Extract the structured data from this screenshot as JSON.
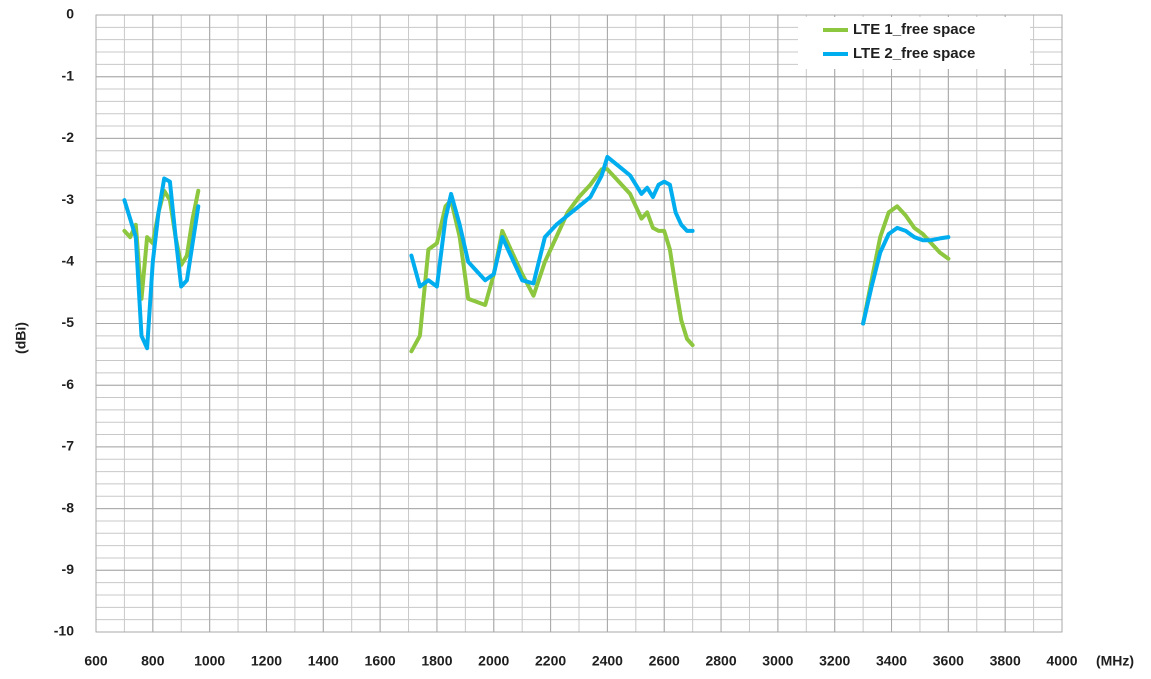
{
  "chart_data": {
    "type": "line",
    "xlabel": "(MHz)",
    "ylabel": "(dBi)",
    "xlim": [
      600,
      4000
    ],
    "ylim": [
      -10,
      0
    ],
    "xticks": [
      600,
      800,
      1000,
      1200,
      1400,
      1600,
      1800,
      2000,
      2200,
      2400,
      2600,
      2800,
      3000,
      3200,
      3400,
      3600,
      3800,
      4000
    ],
    "yticks": [
      0,
      -1,
      -2,
      -3,
      -4,
      -5,
      -6,
      -7,
      -8,
      -9,
      -10
    ],
    "grid": true,
    "minor_grid": {
      "xstep": 100,
      "ystep": 0.2
    },
    "legend": "upper right",
    "x": [
      700,
      720,
      740,
      760,
      780,
      800,
      820,
      840,
      860,
      880,
      900,
      920,
      940,
      960,
      1300,
      1710,
      1740,
      1770,
      1800,
      1830,
      1850,
      1880,
      1910,
      1940,
      1970,
      2000,
      2030,
      2060,
      2100,
      2140,
      2180,
      2220,
      2260,
      2300,
      2340,
      2380,
      2400,
      2440,
      2480,
      2520,
      2540,
      2560,
      2580,
      2600,
      2620,
      2640,
      2660,
      2680,
      2700,
      3000,
      3300,
      3330,
      3360,
      3390,
      3420,
      3450,
      3480,
      3510,
      3540,
      3570,
      3600
    ],
    "series": [
      {
        "name": "LTE 1_free space",
        "color": "#8dc63f",
        "values": [
          -3.5,
          -3.6,
          -3.4,
          -4.6,
          -3.6,
          -3.7,
          -3.2,
          -2.85,
          -3.0,
          -3.6,
          -4.05,
          -3.9,
          -3.3,
          -2.85,
          null,
          -5.45,
          -5.2,
          -3.8,
          -3.7,
          -3.1,
          -3.0,
          -3.6,
          -4.6,
          -4.65,
          -4.7,
          -4.2,
          -3.5,
          -3.8,
          -4.2,
          -4.55,
          -4.0,
          -3.6,
          -3.2,
          -2.95,
          -2.75,
          -2.5,
          -2.5,
          -2.7,
          -2.9,
          -3.3,
          -3.2,
          -3.45,
          -3.5,
          -3.5,
          -3.8,
          -4.4,
          -4.95,
          -5.25,
          -5.35,
          null,
          -5.0,
          -4.3,
          -3.6,
          -3.2,
          -3.1,
          -3.25,
          -3.45,
          -3.55,
          -3.7,
          -3.85,
          -3.95
        ]
      },
      {
        "name": "LTE 2_free space",
        "color": "#00aeef",
        "values": [
          -3.0,
          -3.3,
          -3.6,
          -5.2,
          -5.4,
          -4.0,
          -3.2,
          -2.65,
          -2.7,
          -3.6,
          -4.4,
          -4.3,
          -3.7,
          -3.1,
          null,
          -3.9,
          -4.4,
          -4.3,
          -4.4,
          -3.3,
          -2.9,
          -3.4,
          -4.0,
          -4.15,
          -4.3,
          -4.2,
          -3.6,
          -3.9,
          -4.3,
          -4.35,
          -3.6,
          -3.4,
          -3.25,
          -3.1,
          -2.95,
          -2.6,
          -2.3,
          -2.45,
          -2.6,
          -2.9,
          -2.8,
          -2.95,
          -2.75,
          -2.7,
          -2.75,
          -3.2,
          -3.4,
          -3.5,
          -3.5,
          null,
          -5.0,
          -4.4,
          -3.85,
          -3.55,
          -3.45,
          -3.5,
          -3.6,
          -3.65,
          -3.65,
          -3.62,
          -3.6
        ]
      }
    ]
  }
}
